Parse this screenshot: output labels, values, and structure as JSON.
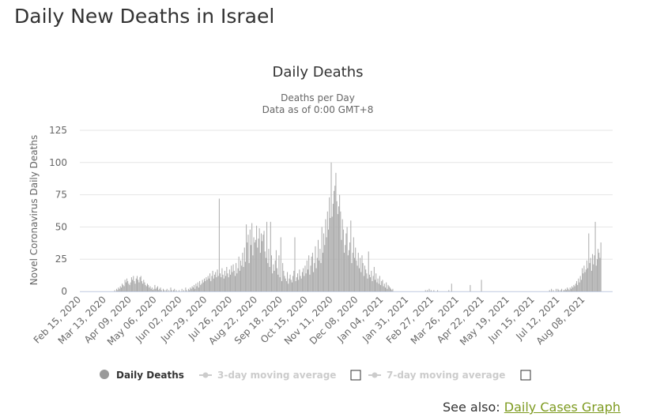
{
  "page": {
    "title": "Daily New Deaths in Israel",
    "see_also_label": "See also:",
    "see_also_link": "Daily Cases Graph"
  },
  "colors": {
    "bars": "#aaaaaa",
    "grid": "#e6e6e6",
    "link": "#7d9a1f",
    "legend_inactive": "#cccccc",
    "legend_marker": "#999999"
  },
  "chart_data": {
    "type": "bar",
    "title": "Daily Deaths",
    "subtitle_lines": [
      "Deaths per Day",
      "Data as of 0:00 GMT+8"
    ],
    "ylabel": "Novel Coronavirus Daily Deaths",
    "ylim": [
      0,
      125
    ],
    "yticks": [
      0,
      25,
      50,
      75,
      100,
      125
    ],
    "x_start_date": "2020-02-15",
    "x_days": 571,
    "x_tick_labels": [
      "Feb 15, 2020",
      "Mar 13, 2020",
      "Apr 09, 2020",
      "May 06, 2020",
      "Jun 02, 2020",
      "Jun 29, 2020",
      "Jul 26, 2020",
      "Aug 22, 2020",
      "Sep 18, 2020",
      "Oct 15, 2020",
      "Nov 11, 2020",
      "Dec 08, 2020",
      "Jan 04, 2021",
      "Jan 31, 2021",
      "Feb 27, 2021",
      "Mar 26, 2021",
      "Apr 22, 2021",
      "May 19, 2021",
      "Jun 15, 2021",
      "Jul 12, 2021",
      "Aug 08, 2021"
    ],
    "legend": [
      {
        "name": "Daily Deaths",
        "active": true
      },
      {
        "name": "3-day moving average",
        "active": false
      },
      {
        "name": "7-day moving average",
        "active": false
      }
    ],
    "grid": true,
    "series": [
      {
        "name": "Daily Deaths",
        "segments": [
          {
            "start": 0,
            "values": [
              0,
              0,
              0,
              0,
              0,
              0,
              0,
              0,
              0,
              0,
              0,
              0,
              0,
              0,
              0,
              0,
              0,
              0,
              0,
              0,
              0,
              0,
              0,
              0,
              0,
              0,
              0,
              0,
              0,
              0,
              0,
              0,
              0,
              0,
              0,
              0,
              0,
              1,
              0,
              2,
              1,
              3,
              2,
              4,
              3,
              6,
              5,
              4,
              9,
              7,
              10,
              8,
              6,
              5,
              7,
              11,
              9,
              12,
              8,
              6,
              10,
              12,
              9,
              7,
              11,
              12,
              8,
              6,
              9,
              7,
              5,
              4,
              6,
              5,
              3,
              4,
              2,
              3,
              1,
              2,
              5,
              2,
              3,
              4,
              1,
              2,
              3,
              1,
              0,
              2,
              1,
              0,
              1,
              2,
              0,
              1,
              0,
              3,
              1,
              0,
              1,
              2,
              0,
              1,
              0,
              0,
              1,
              0,
              0,
              2
            ]
          },
          {
            "start": 110,
            "values": [
              0,
              1,
              0,
              3,
              1,
              0,
              2,
              1,
              3,
              2,
              4,
              3,
              5,
              2,
              6,
              4,
              7,
              3,
              8,
              5,
              6,
              9,
              7,
              10,
              8,
              11,
              9,
              12,
              10,
              14,
              8,
              12,
              16,
              10,
              13,
              15,
              11,
              17,
              12,
              72,
              14,
              11,
              18,
              13,
              10,
              16,
              12,
              19,
              14,
              11,
              17,
              13,
              20,
              15,
              21,
              16,
              12,
              22,
              14,
              18,
              27,
              16,
              24,
              20,
              30,
              19,
              34,
              23,
              52,
              38,
              44,
              22,
              48,
              36,
              53,
              28,
              42,
              38,
              40,
              51,
              34,
              41,
              49,
              30,
              45,
              39,
              44,
              47,
              31,
              26,
              54,
              22,
              33,
              19,
              54,
              28,
              14,
              21,
              16,
              24,
              32,
              18,
              13,
              28,
              11,
              42,
              8,
              22,
              16,
              12,
              10,
              8,
              15,
              6,
              10,
              13,
              9,
              7,
              12,
              16,
              42,
              8,
              11,
              14,
              9,
              17,
              12,
              10,
              15,
              18,
              12,
              20,
              14,
              24,
              17,
              28,
              13,
              20,
              27,
              30,
              15,
              22,
              35,
              18,
              26,
              40,
              24,
              33,
              22,
              50,
              30,
              45,
              36,
              56,
              42,
              62,
              48,
              73,
              57,
              100,
              58,
              68,
              78,
              82,
              92,
              70,
              60,
              66,
              75,
              62,
              40,
              56,
              48,
              30,
              36,
              45,
              50,
              28,
              32,
              38,
              55,
              22,
              30,
              42,
              26,
              34,
              24,
              20,
              30,
              18,
              26,
              15,
              28,
              22,
              12,
              20,
              17,
              14,
              10,
              31,
              13,
              11,
              16,
              8,
              12,
              19,
              9,
              14,
              7,
              10,
              6,
              12,
              5,
              8,
              9,
              4,
              6,
              3,
              7,
              2,
              5,
              4,
              3,
              2,
              1,
              2
            ]
          },
          {
            "start": 370,
            "values": [
              1,
              0,
              1,
              0,
              2,
              0,
              1,
              0,
              0,
              1,
              0,
              0,
              0,
              1,
              0,
              0,
              0,
              0,
              0,
              0,
              0,
              0,
              0,
              0,
              0,
              1,
              0,
              0,
              0,
              0,
              0,
              0,
              0,
              0,
              0,
              0,
              0,
              0,
              0,
              0,
              0,
              0,
              0,
              0,
              0,
              0,
              0,
              0,
              0,
              0,
              0,
              0,
              0,
              0,
              0,
              0,
              0,
              0,
              0,
              0,
              0,
              0,
              0,
              0,
              0,
              0,
              0,
              0,
              0,
              0,
              0,
              0,
              0,
              0,
              0,
              0,
              0,
              0,
              0,
              0,
              0,
              0,
              0,
              0,
              0,
              0,
              0,
              0,
              0,
              0,
              0,
              0,
              0,
              0,
              0,
              0,
              0,
              0,
              0,
              0,
              0,
              0,
              0,
              0,
              0,
              0,
              0,
              0,
              0,
              0,
              0,
              0,
              0,
              0,
              0,
              0,
              0,
              0,
              0,
              0,
              0,
              0,
              0,
              0,
              0,
              0
            ]
          },
          {
            "start": 500,
            "values": [
              0,
              0,
              0,
              1,
              0,
              2,
              0,
              1,
              0,
              0,
              1,
              0,
              2,
              1,
              0,
              1,
              2,
              0,
              1,
              1,
              2,
              1,
              3,
              2,
              1,
              3,
              2,
              4,
              3,
              5,
              4,
              6,
              8,
              5,
              10,
              7,
              12,
              9,
              18,
              14,
              20,
              15,
              17,
              24,
              18,
              45,
              22,
              26,
              16,
              29,
              21,
              28,
              54,
              20,
              25,
              33,
              30,
              26,
              38
            ]
          },
          {
            "start": 398,
            "values": [
              6
            ]
          },
          {
            "start": 418,
            "values": [
              5
            ]
          },
          {
            "start": 430,
            "values": [
              9
            ]
          },
          {
            "start": 510,
            "values": [
              2
            ]
          }
        ]
      }
    ]
  }
}
